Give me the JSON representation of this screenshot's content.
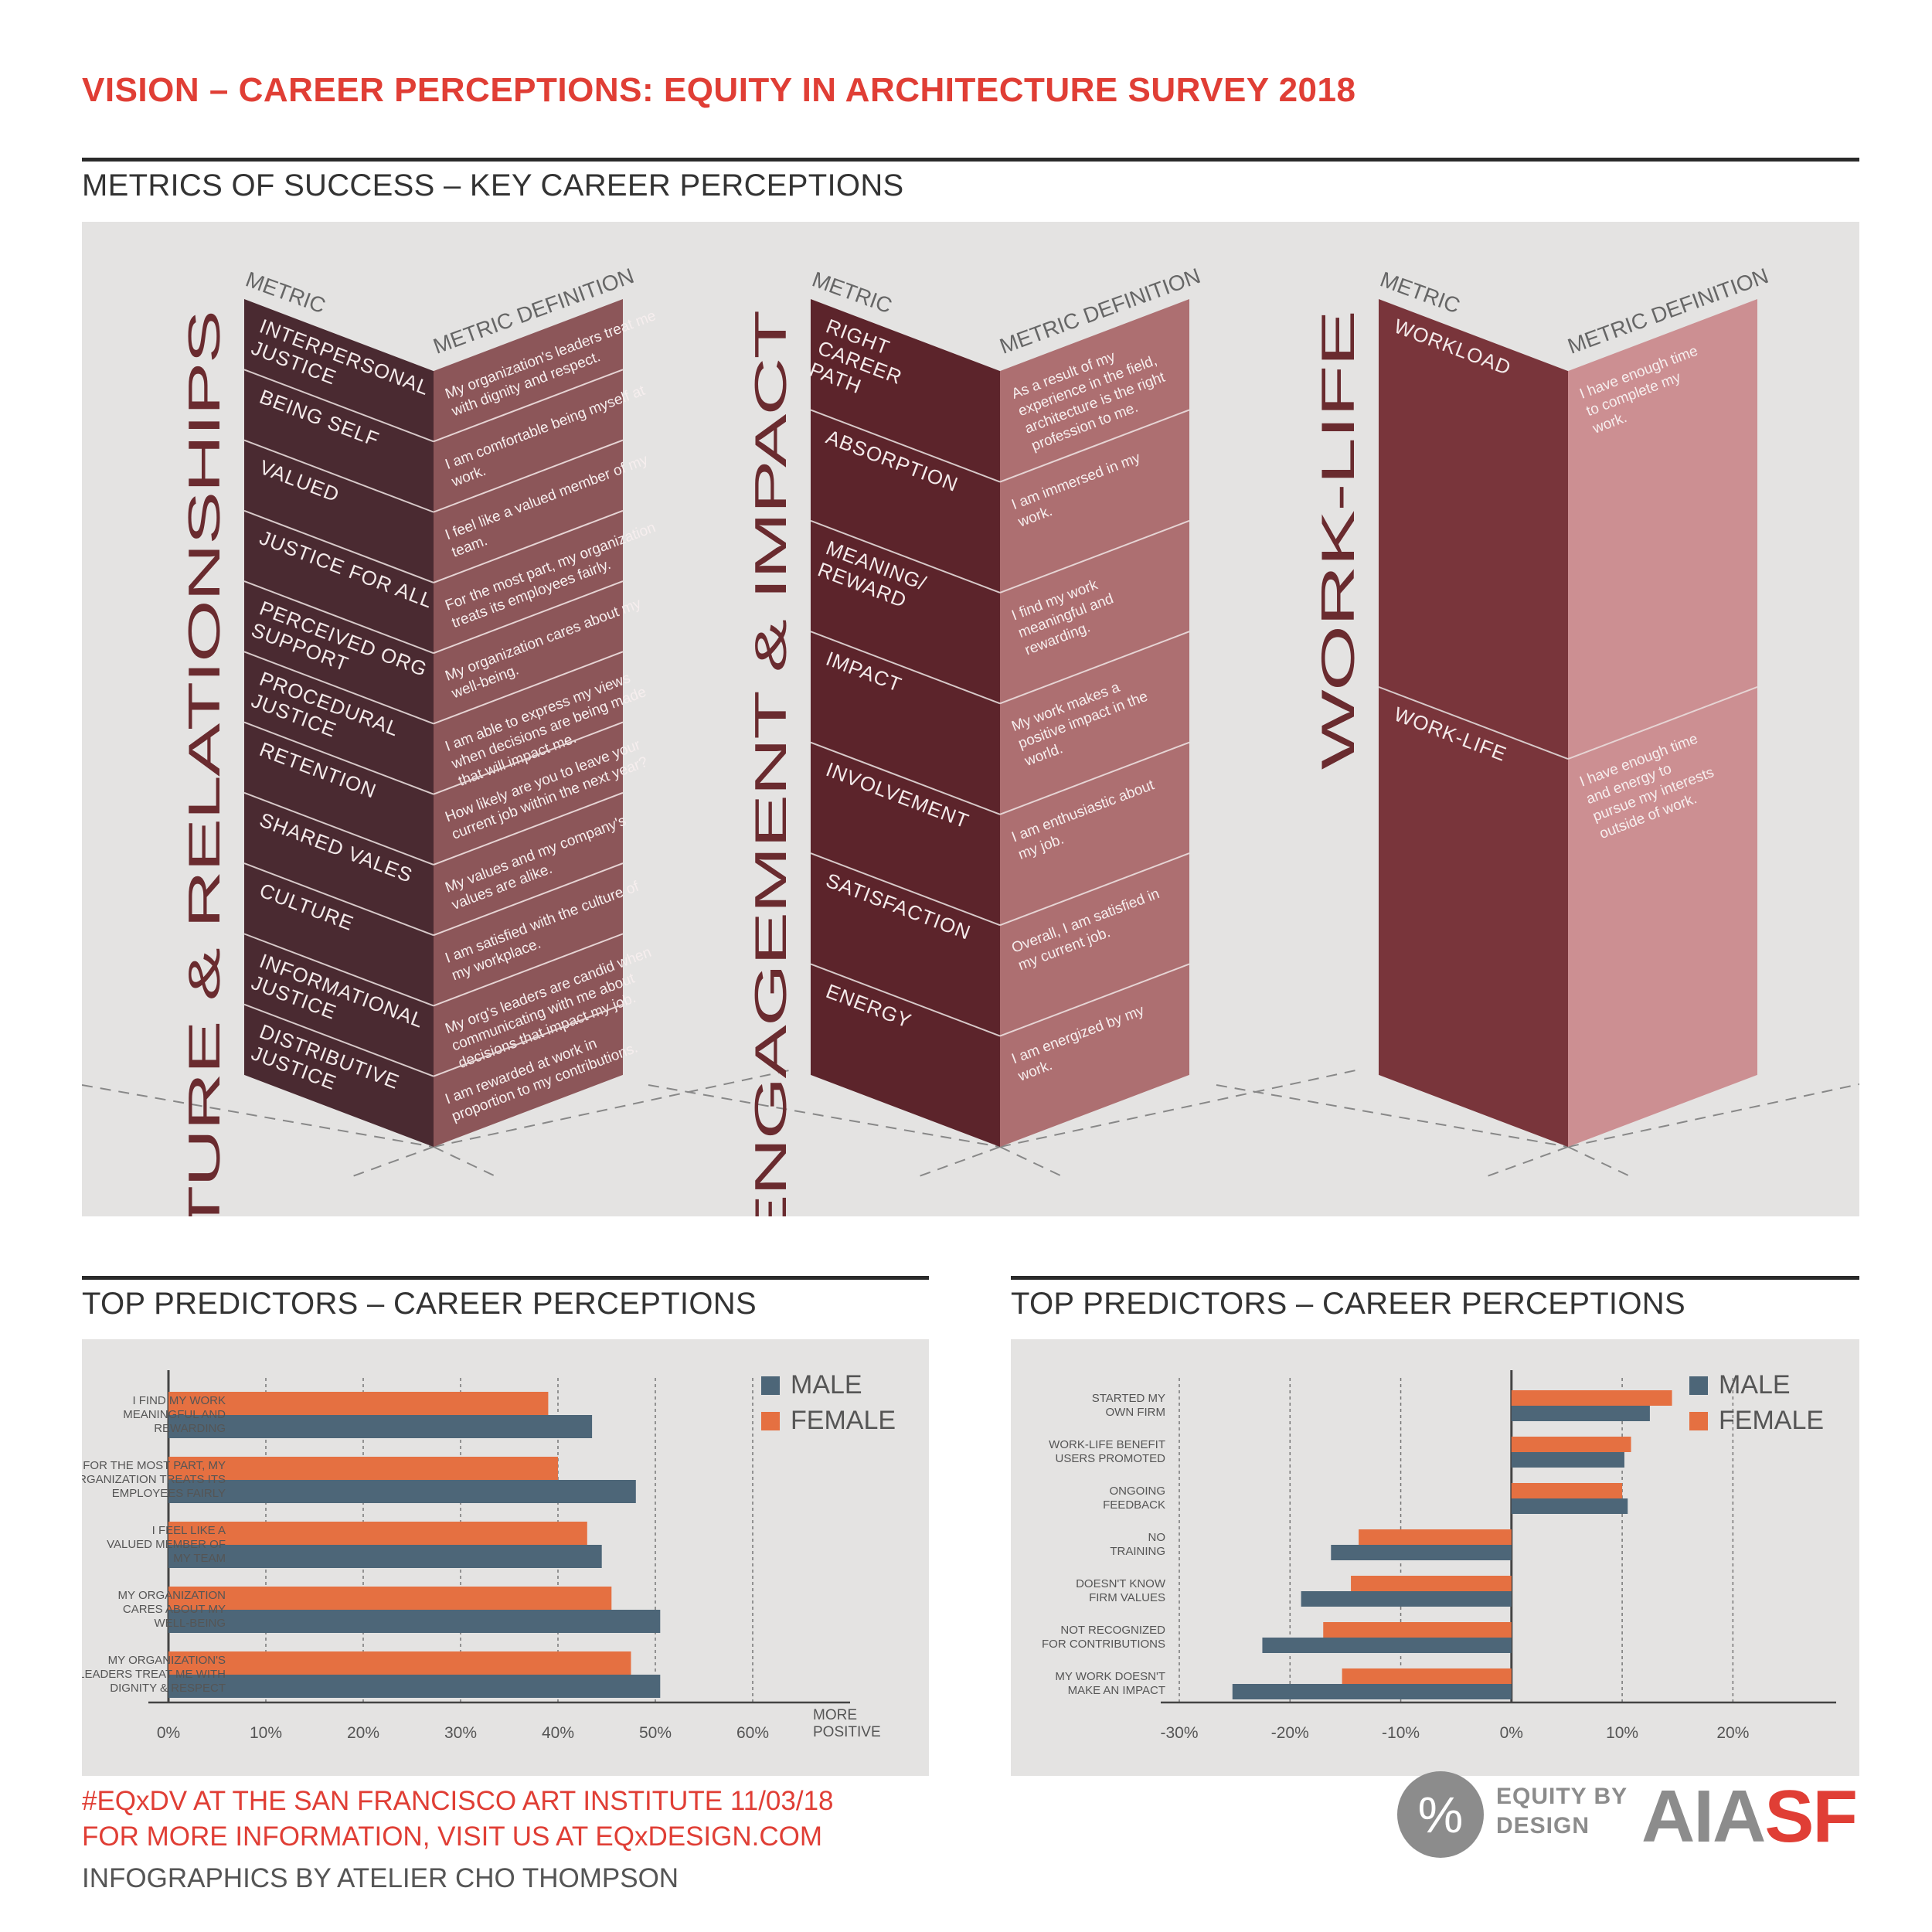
{
  "title": "VISION – CAREER PERCEPTIONS: EQUITY IN ARCHITECTURE SURVEY 2018",
  "metrics_section_title": "METRICS OF SUCCESS – KEY CAREER PERCEPTIONS",
  "predictors_title_left": "TOP PREDICTORS – CAREER PERCEPTIONS",
  "predictors_title_right": "TOP PREDICTORS – CAREER PERCEPTIONS",
  "colors": {
    "accent_red": "#e03e35",
    "male": "#4d6678",
    "female": "#e57041",
    "culture_left": "#4a2a31",
    "culture_right": "#8c5659",
    "engage_left": "#5c242b",
    "engage_right": "#ad6f71",
    "work_left": "#79353b",
    "work_right": "#cc8f92"
  },
  "blocks": [
    {
      "name": "CULTURE & RELATIONSHIPS",
      "metric_header": "METRIC",
      "definition_header": "METRIC DEFINITION",
      "rows": [
        {
          "metric": [
            "INTERPERSONAL",
            "JUSTICE"
          ],
          "definition": [
            "My organization's leaders treat me",
            "with dignity and respect."
          ]
        },
        {
          "metric": [
            "BEING SELF"
          ],
          "definition": [
            "I am comfortable being myself at",
            "work."
          ]
        },
        {
          "metric": [
            "VALUED"
          ],
          "definition": [
            "I feel like a valued member of my",
            "team."
          ]
        },
        {
          "metric": [
            "JUSTICE FOR ALL"
          ],
          "definition": [
            "For the most part, my organization",
            "treats its employees fairly."
          ]
        },
        {
          "metric": [
            "PERCEIVED ORG",
            "SUPPORT"
          ],
          "definition": [
            "My organization cares about my",
            "well-being."
          ]
        },
        {
          "metric": [
            "PROCEDURAL",
            "JUSTICE"
          ],
          "definition": [
            "I am able to express my views",
            "when decisions are being made",
            "that will impact me."
          ]
        },
        {
          "metric": [
            "RETENTION"
          ],
          "definition": [
            "How likely are you to leave your",
            "current job within the next year?"
          ]
        },
        {
          "metric": [
            "SHARED VALES"
          ],
          "definition": [
            "My values and my company's",
            "values are alike."
          ]
        },
        {
          "metric": [
            "CULTURE"
          ],
          "definition": [
            "I am satisfied with the culture of",
            "my workplace."
          ]
        },
        {
          "metric": [
            "INFORMATIONAL",
            "JUSTICE"
          ],
          "definition": [
            "My org's leaders are candid when",
            "communicating with me about",
            "decisions that impact my job."
          ]
        },
        {
          "metric": [
            "DISTRIBUTIVE",
            "JUSTICE"
          ],
          "definition": [
            "I am rewarded at work in",
            "proportion to my contributions."
          ]
        }
      ]
    },
    {
      "name": "ENGAGEMENT & IMPACT",
      "metric_header": "METRIC",
      "definition_header": "METRIC DEFINITION",
      "rows": [
        {
          "metric": [
            "RIGHT",
            "CAREER",
            "PATH"
          ],
          "definition": [
            "As a result of my",
            "experience in the field,",
            "architecture is the right",
            "profession to me."
          ]
        },
        {
          "metric": [
            "ABSORPTION"
          ],
          "definition": [
            "I am immersed in my",
            "work."
          ]
        },
        {
          "metric": [
            "MEANING/",
            "REWARD"
          ],
          "definition": [
            "I find my work",
            "meaningful and",
            "rewarding."
          ]
        },
        {
          "metric": [
            "IMPACT"
          ],
          "definition": [
            "My work makes a",
            "positive impact in the",
            "world."
          ]
        },
        {
          "metric": [
            "INVOLVEMENT"
          ],
          "definition": [
            "I am enthusiastic about",
            "my job."
          ]
        },
        {
          "metric": [
            "SATISFACTION"
          ],
          "definition": [
            "Overall, I am satisfied in",
            "my current job."
          ]
        },
        {
          "metric": [
            "ENERGY"
          ],
          "definition": [
            "I am energized by my",
            "work."
          ]
        }
      ]
    },
    {
      "name": "WORK-LIFE",
      "metric_header": "METRIC",
      "definition_header": "METRIC DEFINITION",
      "rows": [
        {
          "metric": [
            "WORKLOAD"
          ],
          "definition": [
            "I have enough time",
            "to complete my",
            "work."
          ]
        },
        {
          "metric": [
            "WORK-LIFE"
          ],
          "definition": [
            "I have enough time",
            "and energy to",
            "pursue my interests",
            "outside of work."
          ]
        }
      ]
    }
  ],
  "chart_data": [
    {
      "type": "bar",
      "orientation": "horizontal",
      "title": "TOP PREDICTORS – CAREER PERCEPTIONS",
      "categories": [
        [
          "I FIND MY WORK",
          "MEANINGFUL AND",
          "REWARDING"
        ],
        [
          "FOR THE MOST PART, MY",
          "ORGANIZATION TREATS ITS",
          "EMPLOYEES FAIRLY"
        ],
        [
          "I FEEL LIKE A",
          "VALUED MEMBER OF",
          "MY TEAM"
        ],
        [
          "MY ORGANIZATION",
          "CARES ABOUT MY",
          "WELL-BEING"
        ],
        [
          "MY ORGANIZATION'S",
          "LEADERS TREAT ME WITH",
          "DIGNITY & RESPECT"
        ]
      ],
      "series": [
        {
          "name": "FEMALE",
          "values": [
            39,
            40,
            43,
            45.5,
            47.5
          ]
        },
        {
          "name": "MALE",
          "values": [
            43.5,
            48,
            44.5,
            50.5,
            50.5
          ]
        }
      ],
      "legend": [
        "MALE",
        "FEMALE"
      ],
      "xlim": [
        0,
        60
      ],
      "xticks": [
        "0%",
        "10%",
        "20%",
        "30%",
        "40%",
        "50%",
        "60%"
      ],
      "xlabel": [
        "MORE",
        "POSITIVE"
      ],
      "grid": true,
      "legend_position": "top-right"
    },
    {
      "type": "bar",
      "orientation": "horizontal",
      "title": "TOP PREDICTORS – CAREER PERCEPTIONS",
      "categories": [
        [
          "STARTED MY",
          "OWN FIRM"
        ],
        [
          "WORK-LIFE BENEFIT",
          "USERS PROMOTED"
        ],
        [
          "ONGOING",
          "FEEDBACK"
        ],
        [
          "NO",
          "TRAINING"
        ],
        [
          "DOESN'T KNOW",
          "FIRM VALUES"
        ],
        [
          "NOT RECOGNIZED",
          "FOR CONTRIBUTIONS"
        ],
        [
          "MY WORK DOESN'T",
          "MAKE AN IMPACT"
        ]
      ],
      "series": [
        {
          "name": "FEMALE",
          "values": [
            14.5,
            10.8,
            10,
            -13.8,
            -14.5,
            -17,
            -15.3
          ]
        },
        {
          "name": "MALE",
          "values": [
            12.5,
            10.2,
            10.5,
            -16.3,
            -19,
            -22.5,
            -25.2
          ]
        }
      ],
      "legend": [
        "MALE",
        "FEMALE"
      ],
      "xlim": [
        -30,
        25
      ],
      "xticks": [
        "-30%",
        "-20%",
        "-10%",
        "0%",
        "10%",
        "20%"
      ],
      "grid": true,
      "legend_position": "top-right"
    }
  ],
  "footer": {
    "line1": "#EQxDV AT THE SAN FRANCISCO ART INSTITUTE 11/03/18",
    "line2": "FOR MORE INFORMATION, VISIT US AT EQxDESIGN.COM",
    "line3": "INFOGRAPHICS BY ATELIER CHO THOMPSON"
  },
  "logo": {
    "symbol": "%",
    "text_line1": "EQUITY BY",
    "text_line2": "DESIGN",
    "aia": "AIA",
    "sf": "SF"
  }
}
